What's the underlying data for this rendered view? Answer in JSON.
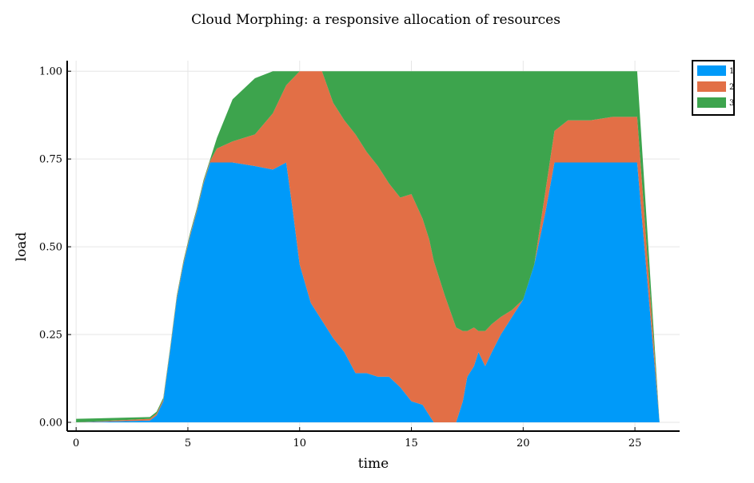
{
  "chart_data": {
    "type": "area",
    "stacked": true,
    "title": "Cloud Morphing: a responsive allocation of resources",
    "xlabel": "time",
    "ylabel": "load",
    "xlim": [
      -0.4,
      27.0
    ],
    "ylim": [
      -0.025,
      1.03
    ],
    "xticks": [
      0,
      5,
      10,
      15,
      20,
      25
    ],
    "yticks": [
      0.0,
      0.25,
      0.5,
      0.75,
      1.0
    ],
    "ytick_labels": [
      "0.00",
      "0.25",
      "0.50",
      "0.75",
      "1.00"
    ],
    "grid": true,
    "legend_position": "top-right",
    "x": [
      0,
      3.3,
      3.6,
      3.9,
      4.2,
      4.5,
      4.8,
      5.1,
      5.4,
      5.7,
      6.0,
      6.3,
      7.0,
      8.0,
      8.8,
      9.4,
      9.7,
      10.0,
      10.5,
      11.0,
      11.5,
      12.0,
      12.5,
      13.0,
      13.5,
      14.0,
      14.5,
      15.0,
      15.5,
      15.8,
      16.0,
      16.5,
      17.0,
      17.3,
      17.5,
      17.8,
      18.0,
      18.3,
      18.6,
      19.0,
      19.5,
      20.0,
      20.5,
      21.0,
      21.4,
      22.0,
      23.0,
      24.0,
      25.0,
      25.1,
      26.1
    ],
    "series": [
      {
        "name": "1",
        "color": "#009af9",
        "values": [
          0,
          0.005,
          0.02,
          0.06,
          0.2,
          0.35,
          0.45,
          0.53,
          0.6,
          0.68,
          0.74,
          0.74,
          0.74,
          0.73,
          0.72,
          0.74,
          0.6,
          0.45,
          0.34,
          0.29,
          0.24,
          0.2,
          0.14,
          0.14,
          0.13,
          0.13,
          0.1,
          0.06,
          0.05,
          0.02,
          0,
          0,
          0,
          0.06,
          0.13,
          0.16,
          0.2,
          0.16,
          0.2,
          0.25,
          0.3,
          0.35,
          0.45,
          0.6,
          0.74,
          0.74,
          0.74,
          0.74,
          0.74,
          0.74,
          0
        ]
      },
      {
        "name": "2",
        "color": "#e26f46",
        "values": [
          0,
          0.005,
          0.005,
          0.005,
          0.005,
          0.005,
          0.005,
          0.005,
          0.005,
          0.005,
          0.005,
          0.04,
          0.06,
          0.09,
          0.16,
          0.22,
          0.38,
          0.55,
          0.66,
          0.71,
          0.67,
          0.66,
          0.68,
          0.63,
          0.6,
          0.55,
          0.54,
          0.59,
          0.53,
          0.5,
          0.46,
          0.36,
          0.27,
          0.2,
          0.13,
          0.11,
          0.06,
          0.1,
          0.08,
          0.05,
          0.02,
          0,
          0,
          0.06,
          0.09,
          0.12,
          0.12,
          0.13,
          0.13,
          0.13,
          0
        ]
      },
      {
        "name": "3",
        "color": "#3da44d",
        "values": [
          0.01,
          0.005,
          0.005,
          0.005,
          0.005,
          0.005,
          0.005,
          0.005,
          0.005,
          0.005,
          0.005,
          0.03,
          0.12,
          0.16,
          0.12,
          0.04,
          0.02,
          0,
          0,
          0,
          0.09,
          0.14,
          0.18,
          0.23,
          0.27,
          0.32,
          0.36,
          0.35,
          0.42,
          0.48,
          0.54,
          0.64,
          0.73,
          0.74,
          0.74,
          0.73,
          0.74,
          0.74,
          0.72,
          0.7,
          0.68,
          0.65,
          0.55,
          0.34,
          0.17,
          0.14,
          0.14,
          0.13,
          0.13,
          0.13,
          0
        ]
      }
    ]
  }
}
